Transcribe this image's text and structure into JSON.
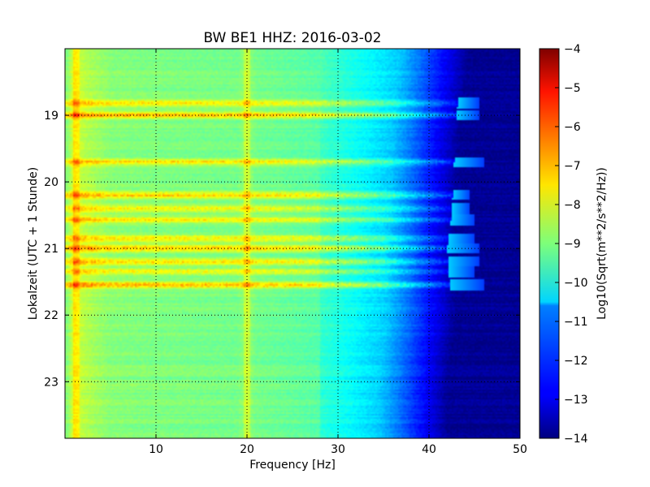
{
  "chart_data": {
    "type": "heatmap",
    "title": "BW BE1 HHZ: 2016-03-02",
    "xlabel": "Frequency [Hz]",
    "ylabel": "Lokalzeit (UTC + 1 Stunde)",
    "xlim": [
      0,
      50
    ],
    "ylim": [
      18.0,
      23.85
    ],
    "y_inverted": true,
    "grid": true,
    "x_ticks": [
      10,
      20,
      30,
      40,
      50
    ],
    "y_ticks": [
      19,
      20,
      21,
      22,
      23
    ],
    "colorbar": {
      "label": "Log10(Sqrt(m**2/s**2/Hz))",
      "colormap": "jet",
      "range": [
        -14,
        -4
      ],
      "ticks": [
        -4,
        -5,
        -6,
        -7,
        -8,
        -9,
        -10,
        -11,
        -12,
        -13,
        -14
      ]
    },
    "spectrum_profile": [
      {
        "freq_hz": 0.3,
        "value": -8.9
      },
      {
        "freq_hz": 1.0,
        "value": -8.0
      },
      {
        "freq_hz": 2.0,
        "value": -8.4
      },
      {
        "freq_hz": 5.0,
        "value": -8.9
      },
      {
        "freq_hz": 10.0,
        "value": -9.0
      },
      {
        "freq_hz": 19.0,
        "value": -9.1
      },
      {
        "freq_hz": 20.0,
        "value": -8.7
      },
      {
        "freq_hz": 21.0,
        "value": -9.1
      },
      {
        "freq_hz": 28.0,
        "value": -9.4
      },
      {
        "freq_hz": 31.0,
        "value": -9.9
      },
      {
        "freq_hz": 34.0,
        "value": -10.3
      },
      {
        "freq_hz": 37.0,
        "value": -10.8
      },
      {
        "freq_hz": 39.0,
        "value": -11.6
      },
      {
        "freq_hz": 41.0,
        "value": -12.5
      },
      {
        "freq_hz": 43.0,
        "value": -13.3
      },
      {
        "freq_hz": 44.5,
        "value": -14.0
      },
      {
        "freq_hz": 50.0,
        "value": -14.0
      }
    ],
    "cutoff_by_time": [
      {
        "time_h": 18.0,
        "cutoff_hz": 44.0
      },
      {
        "time_h": 19.0,
        "cutoff_hz": 43.0
      },
      {
        "time_h": 20.5,
        "cutoff_hz": 42.5
      },
      {
        "time_h": 21.0,
        "cutoff_hz": 42.0
      },
      {
        "time_h": 22.0,
        "cutoff_hz": 42.5
      },
      {
        "time_h": 23.0,
        "cutoff_hz": 41.5
      },
      {
        "time_h": 23.85,
        "cutoff_hz": 41.5
      }
    ],
    "bands": [
      {
        "time_h": 18.82,
        "boost": 1.4,
        "max_freq_hz": 45.5
      },
      {
        "time_h": 19.0,
        "boost": 1.9,
        "max_freq_hz": 45.5
      },
      {
        "time_h": 19.7,
        "boost": 1.5,
        "max_freq_hz": 46.0
      },
      {
        "time_h": 20.2,
        "boost": 1.7,
        "max_freq_hz": 44.5
      },
      {
        "time_h": 20.4,
        "boost": 1.4,
        "max_freq_hz": 44.5
      },
      {
        "time_h": 20.57,
        "boost": 1.3,
        "max_freq_hz": 45.0
      },
      {
        "time_h": 20.85,
        "boost": 1.5,
        "max_freq_hz": 45.0
      },
      {
        "time_h": 21.0,
        "boost": 1.9,
        "max_freq_hz": 45.5
      },
      {
        "time_h": 21.2,
        "boost": 1.5,
        "max_freq_hz": 45.5
      },
      {
        "time_h": 21.35,
        "boost": 1.3,
        "max_freq_hz": 45.0
      },
      {
        "time_h": 21.55,
        "boost": 1.9,
        "max_freq_hz": 46.0
      }
    ],
    "lines": [
      {
        "freq_hz": 20.0,
        "boost": 0.5
      },
      {
        "freq_hz": 1.2,
        "boost": 0.6
      }
    ]
  }
}
